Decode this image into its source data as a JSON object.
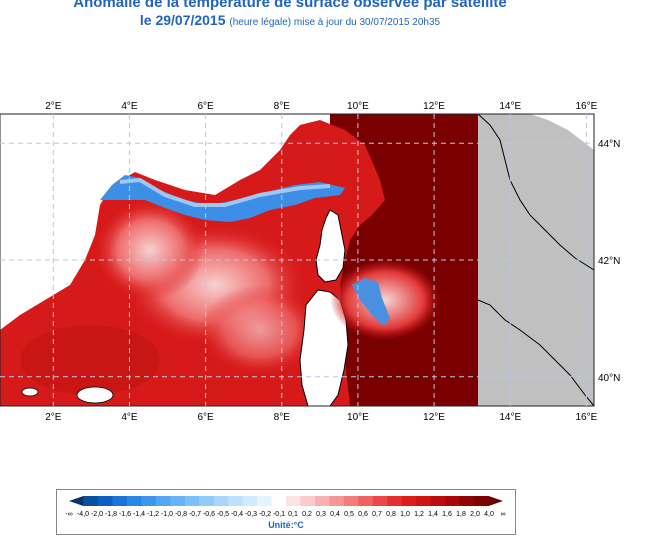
{
  "header": {
    "title": "Anomalie de la température de surface observée par satellite",
    "date_line": "le 29/07/2015",
    "update_note": "(heure légale) mise à jour du 30/07/2015 20h35"
  },
  "map": {
    "lon_labels": [
      "2°E",
      "4°E",
      "6°E",
      "8°E",
      "10°E",
      "12°E",
      "14°E",
      "16°E"
    ],
    "lat_labels": [
      "44°N",
      "42°N",
      "40°N"
    ],
    "lon_range": [
      0.6,
      16.2
    ],
    "lat_range": [
      39.5,
      44.5
    ],
    "land_color": "#c0c0c0",
    "high_anomaly_color": "#7a0000"
  },
  "legend": {
    "ticks": [
      "-∞",
      "-4,0",
      "-2,0",
      "-1,8",
      "-1,6",
      "-1,4",
      "-1,2",
      "-1,0",
      "-0,8",
      "-0,7",
      "-0,6",
      "-0,5",
      "-0,4",
      "-0,3",
      "-0,2",
      "-0,1",
      "0,1",
      "0,2",
      "0,3",
      "0,4",
      "0,5",
      "0,6",
      "0,7",
      "0,8",
      "1,0",
      "1,2",
      "1,4",
      "1,6",
      "1,8",
      "2,0",
      "4,0",
      "∞"
    ],
    "unit": "Unité:°C"
  }
}
